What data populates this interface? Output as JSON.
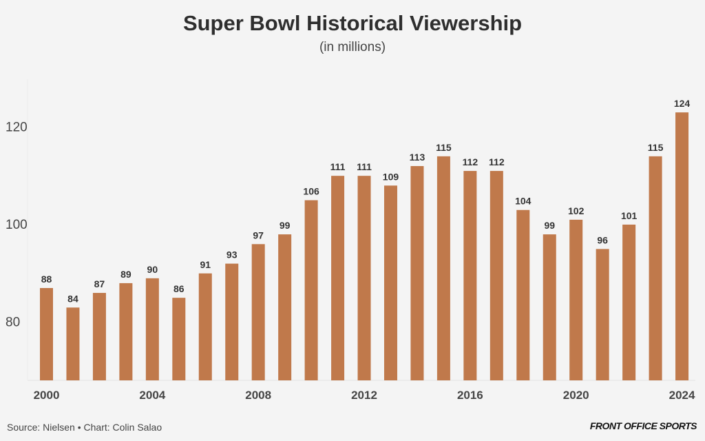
{
  "chart_data": {
    "type": "bar",
    "title": "Super Bowl Historical Viewership",
    "subtitle": "(in millions)",
    "xlabel": "",
    "ylabel": "",
    "categories": [
      "2000",
      "2001",
      "2002",
      "2003",
      "2004",
      "2005",
      "2006",
      "2007",
      "2008",
      "2009",
      "2010",
      "2011",
      "2012",
      "2013",
      "2014",
      "2015",
      "2016",
      "2017",
      "2018",
      "2019",
      "2020",
      "2021",
      "2022",
      "2023",
      "2024"
    ],
    "values": [
      88,
      84,
      87,
      89,
      90,
      86,
      91,
      93,
      97,
      99,
      106,
      111,
      111,
      109,
      113,
      115,
      112,
      112,
      104,
      99,
      102,
      96,
      101,
      115,
      124
    ],
    "x_tick_labels": [
      "2000",
      "2004",
      "2008",
      "2012",
      "2016",
      "2020",
      "2024"
    ],
    "y_ticks": [
      80,
      100,
      120
    ],
    "ylim": [
      69,
      128
    ],
    "grid": false,
    "data_labels": true,
    "bar_color": "#c0794b"
  },
  "footer": {
    "source": "Source: Nielsen • Chart: Colin Salao",
    "logo": "FRONT OFFICE SPORTS"
  }
}
